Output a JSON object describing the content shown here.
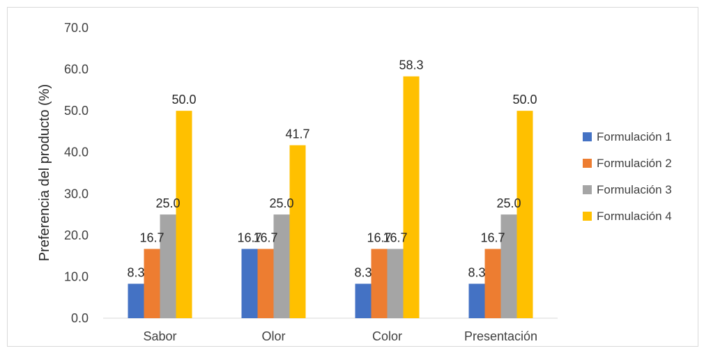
{
  "chart_data": {
    "type": "bar",
    "title": "",
    "xlabel": "",
    "ylabel": "Preferencia del producto (%)",
    "ylim": [
      0,
      70
    ],
    "yticks": [
      "0.0",
      "10.0",
      "20.0",
      "30.0",
      "40.0",
      "50.0",
      "60.0",
      "70.0"
    ],
    "categories": [
      "Sabor",
      "Olor",
      "Color",
      "Presentación"
    ],
    "series": [
      {
        "name": "Formulación 1",
        "color": "#4472c4",
        "values": [
          8.3,
          16.7,
          8.3,
          8.3
        ],
        "labels": [
          "8.3",
          "16.7",
          "8.3",
          "8.3"
        ]
      },
      {
        "name": "Formulación 2",
        "color": "#ed7d31",
        "values": [
          16.7,
          16.7,
          16.7,
          16.7
        ],
        "labels": [
          "16.7",
          "16.7",
          "16.7",
          "16.7"
        ]
      },
      {
        "name": "Formulación 3",
        "color": "#a5a5a5",
        "values": [
          25.0,
          25.0,
          16.7,
          25.0
        ],
        "labels": [
          "25.0",
          "25.0",
          "16.7",
          "25.0"
        ]
      },
      {
        "name": "Formulación 4",
        "color": "#ffc000",
        "values": [
          50.0,
          41.7,
          58.3,
          50.0
        ],
        "labels": [
          "50.0",
          "41.7",
          "58.3",
          "50.0"
        ]
      }
    ],
    "legend": "right",
    "grid": false
  }
}
